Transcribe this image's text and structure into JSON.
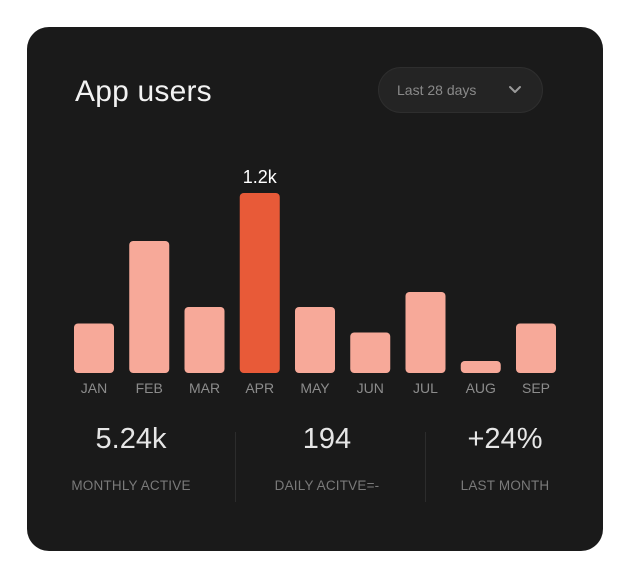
{
  "card": {
    "title": "App users",
    "period": {
      "selected": "Last 28 days",
      "icon": "chevron-down-icon"
    }
  },
  "colors": {
    "background": "#1a1a1a",
    "bar": "#f7a999",
    "bar_highlight": "#e85a38",
    "axis_text": "#8c8c8c",
    "value_label": "#ffffff"
  },
  "chart_data": {
    "type": "bar",
    "title": "App users",
    "categories": [
      "JAN",
      "FEB",
      "MAR",
      "APR",
      "MAY",
      "JUN",
      "JUL",
      "AUG",
      "SEP"
    ],
    "values": [
      0.33,
      0.88,
      0.44,
      1.2,
      0.44,
      0.27,
      0.54,
      0.08,
      0.33
    ],
    "highlight_index": 3,
    "highlight_label": "1.2k",
    "ylim": [
      0,
      1.2
    ],
    "grid": false,
    "xlabel": "",
    "ylabel": ""
  },
  "stats": [
    {
      "value": "5.24k",
      "label": "MONTHLY ACTIVE"
    },
    {
      "value": "194",
      "label": "DAILY ACITVE=-"
    },
    {
      "value": "+24%",
      "label": "LAST MONTH"
    }
  ]
}
